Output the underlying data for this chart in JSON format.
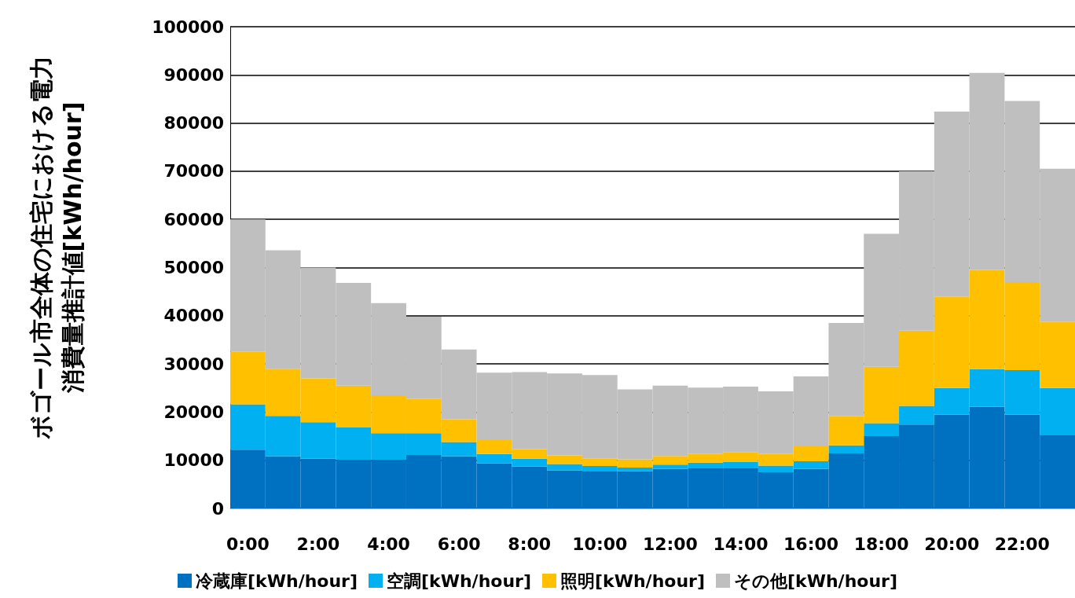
{
  "chart_data": {
    "type": "bar",
    "stacked": true,
    "ylabel": "ボゴール市全体の住宅における電力消費量推計値[kWh/hour]",
    "categories": [
      "0:00",
      null,
      "2:00",
      null,
      "4:00",
      null,
      "6:00",
      null,
      "8:00",
      null,
      "10:00",
      null,
      "12:00",
      null,
      "14:00",
      null,
      "16:00",
      null,
      "18:00",
      null,
      "20:00",
      null,
      "22:00",
      null
    ],
    "series": [
      {
        "name": "冷蔵庫[kWh/hour]",
        "color": "#0070c0",
        "values": [
          12200,
          10800,
          10300,
          10100,
          10100,
          11100,
          10800,
          9400,
          8700,
          7900,
          7800,
          7700,
          8200,
          8300,
          8300,
          7500,
          8200,
          11400,
          15000,
          17400,
          19500,
          21100,
          19500,
          15300
        ]
      },
      {
        "name": "空調[kWh/hour]",
        "color": "#00b0f0",
        "values": [
          9400,
          8400,
          7600,
          6800,
          5500,
          4500,
          3000,
          1900,
          1600,
          1300,
          1000,
          800,
          900,
          1200,
          1400,
          1400,
          1600,
          1700,
          2700,
          3900,
          5500,
          7800,
          9200,
          9700
        ]
      },
      {
        "name": "照明[kWh/hour]",
        "color": "#ffc000",
        "values": [
          10900,
          9800,
          9100,
          8600,
          7900,
          7100,
          4700,
          2900,
          2000,
          1800,
          1600,
          1700,
          1800,
          1800,
          2000,
          2400,
          3100,
          6100,
          11700,
          15600,
          19000,
          20600,
          18300,
          13800
        ]
      },
      {
        "name": "その他[kWh/hour]",
        "color": "#bfbfbf",
        "values": [
          27500,
          24600,
          23000,
          21300,
          19100,
          17100,
          14500,
          14000,
          16000,
          17000,
          17300,
          14500,
          14600,
          13800,
          13600,
          13000,
          14500,
          19300,
          27600,
          33100,
          38400,
          40900,
          37600,
          31700
        ]
      }
    ],
    "ylim": [
      0,
      100000
    ],
    "yticks": [
      0,
      10000,
      20000,
      30000,
      40000,
      50000,
      60000,
      70000,
      80000,
      90000,
      100000
    ],
    "grid": "y",
    "legend": "bottom"
  }
}
